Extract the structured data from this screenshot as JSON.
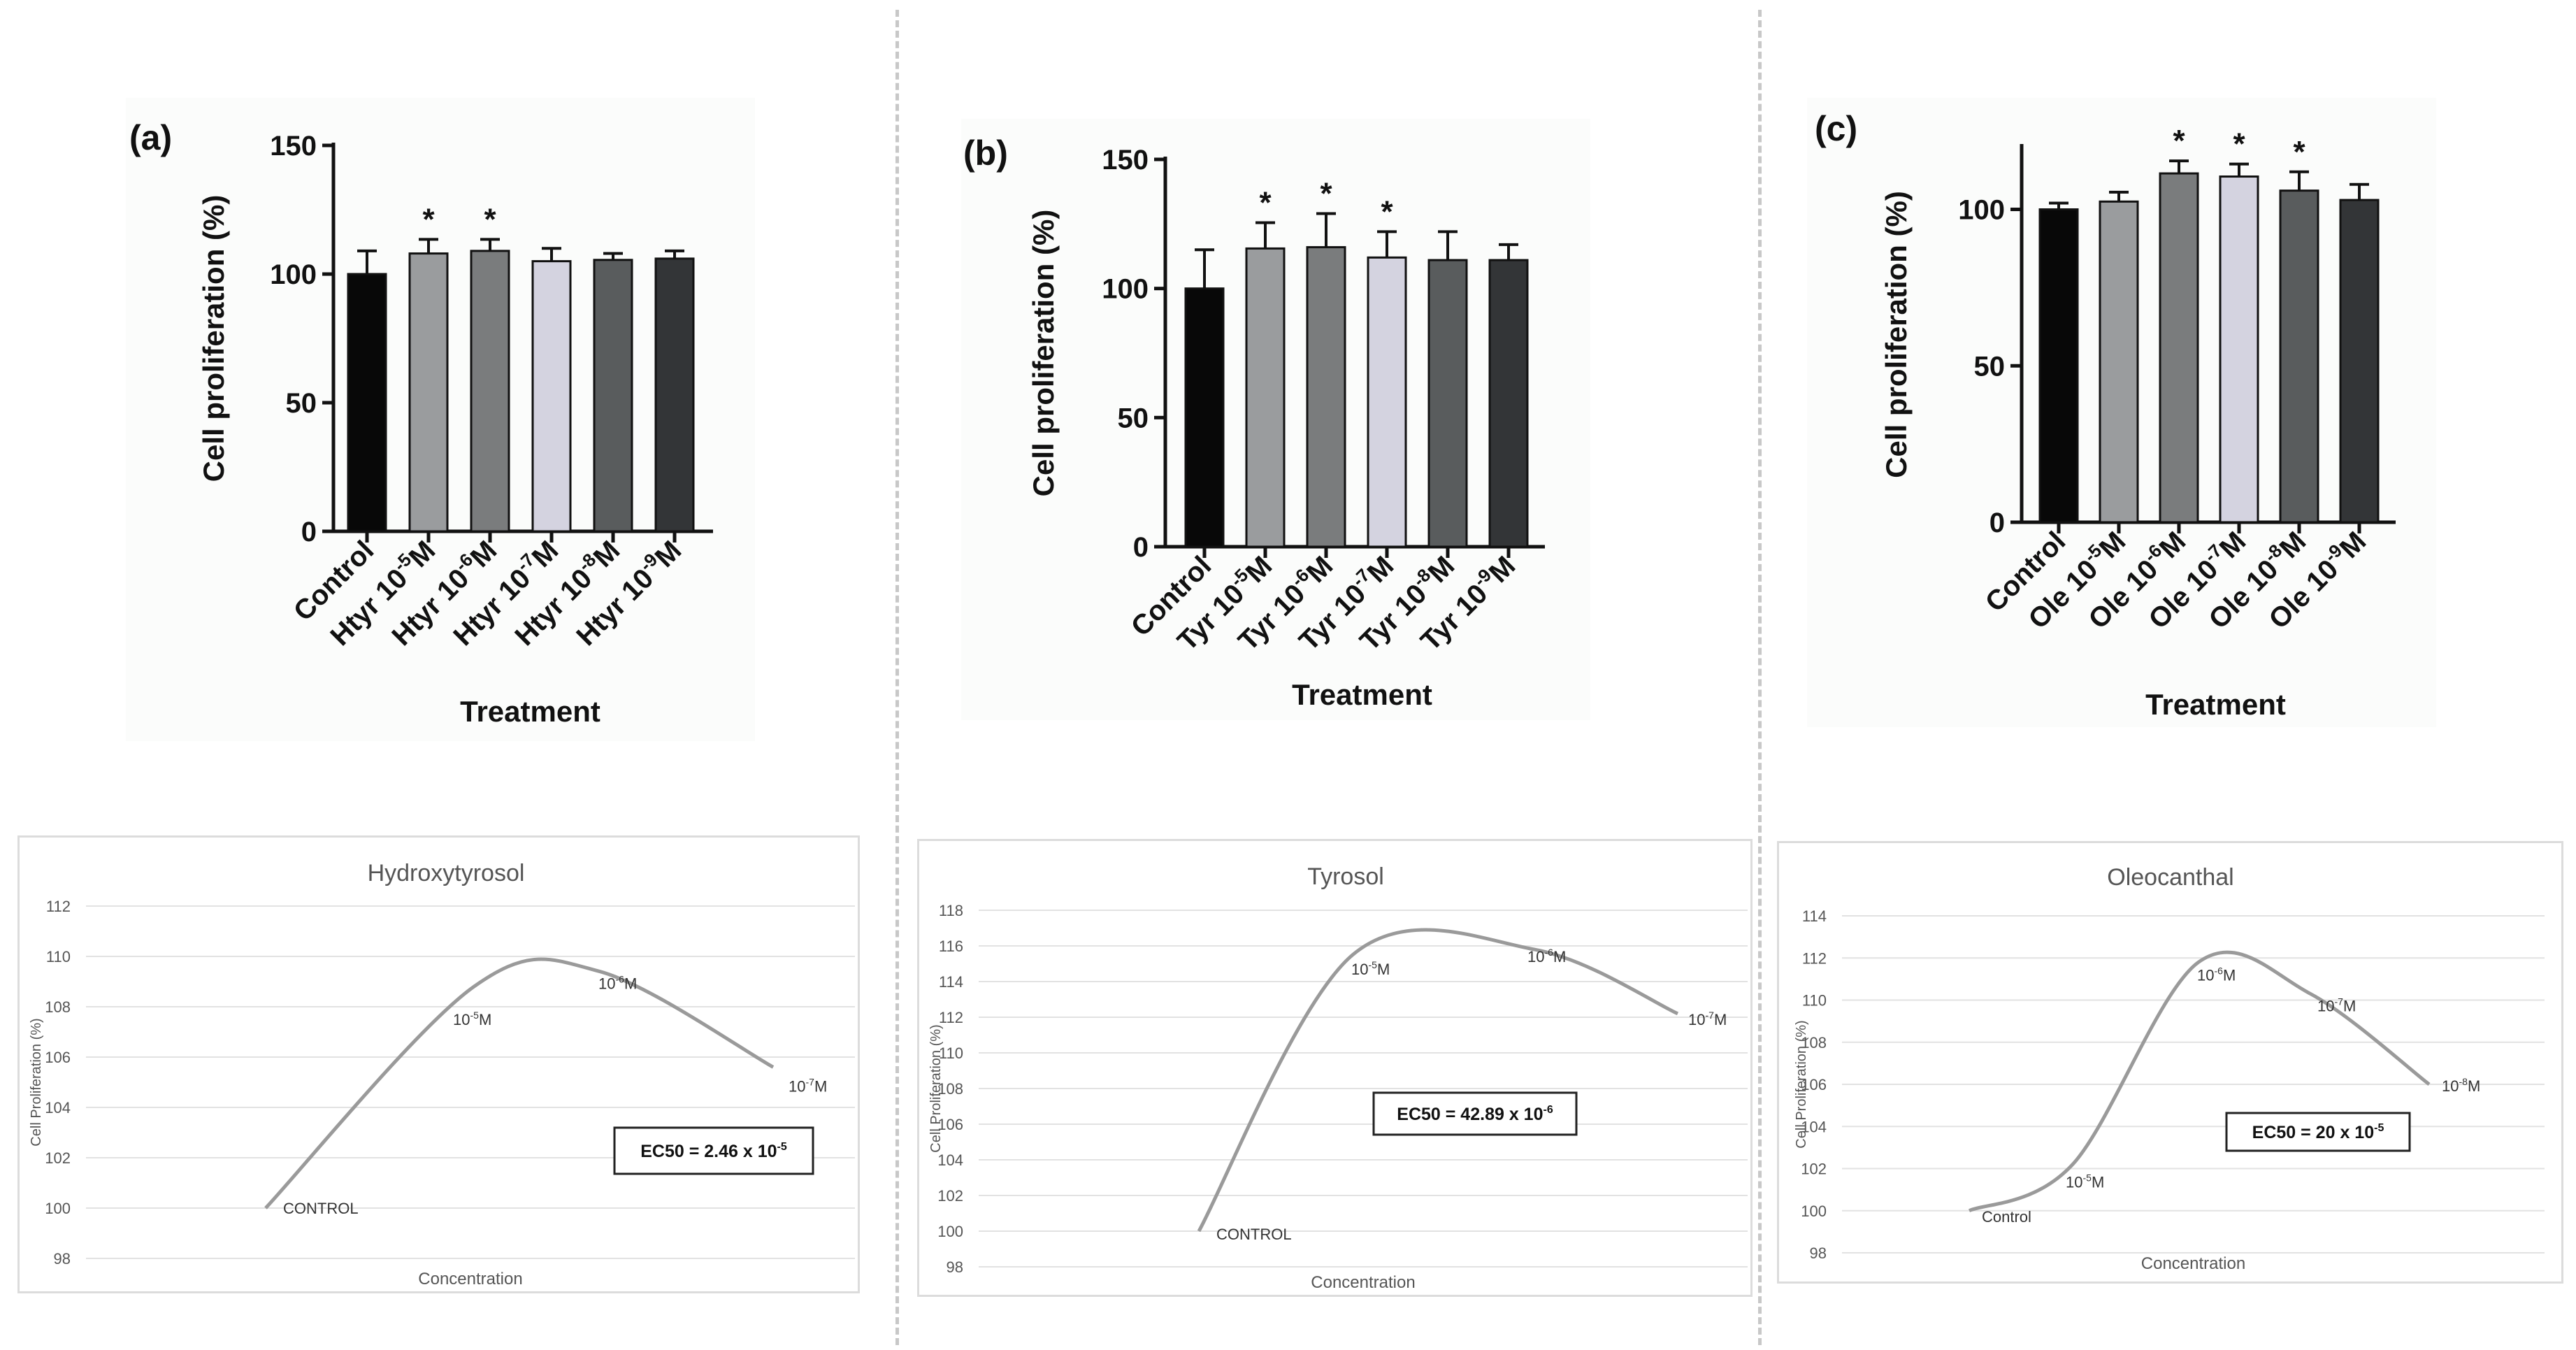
{
  "colors": {
    "bars": [
      "#080808",
      "#9a9c9e",
      "#7a7c7d",
      "#d4d3e0",
      "#595c5d",
      "#333537"
    ],
    "axis": "#111111",
    "curve": "#9a9a9a",
    "grid": "#e2e2e2"
  },
  "chart_data": [
    {
      "id": "a",
      "type": "bar",
      "panel_label": "(a)",
      "xlabel": "Treatment",
      "ylabel": "Cell proliferation (%)",
      "ylim": [
        0,
        150
      ],
      "yticks": [
        0,
        50,
        100,
        150
      ],
      "categories": [
        {
          "base": "Control",
          "sup": ""
        },
        {
          "base": "Htyr 10",
          "sup": "-5",
          "unit": "M"
        },
        {
          "base": "Htyr 10",
          "sup": "-6",
          "unit": "M"
        },
        {
          "base": "Htyr 10",
          "sup": "-7",
          "unit": "M"
        },
        {
          "base": "Htyr 10",
          "sup": "-8",
          "unit": "M"
        },
        {
          "base": "Htyr 10",
          "sup": "-9",
          "unit": "M"
        }
      ],
      "values": [
        100,
        108,
        109,
        105,
        105.5,
        106
      ],
      "errors": [
        9,
        5.5,
        4.5,
        5,
        2.5,
        3
      ],
      "significance": [
        "",
        "*",
        "*",
        "",
        "",
        ""
      ]
    },
    {
      "id": "b",
      "type": "bar",
      "panel_label": "(b)",
      "xlabel": "Treatment",
      "ylabel": "Cell proliferation (%)",
      "ylim": [
        0,
        150
      ],
      "yticks": [
        0,
        50,
        100,
        150
      ],
      "categories": [
        {
          "base": "Control",
          "sup": ""
        },
        {
          "base": "Tyr 10",
          "sup": "-5",
          "unit": "M"
        },
        {
          "base": "Tyr 10",
          "sup": "-6",
          "unit": "M"
        },
        {
          "base": "Tyr 10",
          "sup": "-7",
          "unit": "M"
        },
        {
          "base": "Tyr 10",
          "sup": "-8",
          "unit": "M"
        },
        {
          "base": "Tyr 10",
          "sup": "-9",
          "unit": "M"
        }
      ],
      "values": [
        100,
        115.5,
        116,
        112,
        111,
        111
      ],
      "errors": [
        15,
        10,
        13,
        10,
        11,
        6
      ],
      "significance": [
        "",
        "*",
        "*",
        "*",
        "",
        ""
      ]
    },
    {
      "id": "c",
      "type": "bar",
      "panel_label": "(c)",
      "xlabel": "Treatment",
      "ylabel": "Cell proliferation (%)",
      "ylim": [
        0,
        120
      ],
      "yticks": [
        0,
        50,
        100
      ],
      "categories": [
        {
          "base": "Control",
          "sup": ""
        },
        {
          "base": "Ole 10",
          "sup": "-5",
          "unit": "M"
        },
        {
          "base": "Ole 10",
          "sup": "-6",
          "unit": "M"
        },
        {
          "base": "Ole 10",
          "sup": "-7",
          "unit": "M"
        },
        {
          "base": "Ole 10",
          "sup": "-8",
          "unit": "M"
        },
        {
          "base": "Ole 10",
          "sup": "-9",
          "unit": "M"
        }
      ],
      "values": [
        100,
        102.5,
        111.5,
        110.5,
        106,
        103
      ],
      "errors": [
        2,
        3,
        4,
        4,
        6,
        5
      ],
      "significance": [
        "",
        "",
        "*",
        "*",
        "*",
        ""
      ]
    },
    {
      "id": "d",
      "type": "line",
      "title": "Hydroxytyrosol",
      "xlabel": "Concentration",
      "ylabel": "Cell Proliferation (%)",
      "ylim": [
        98,
        112
      ],
      "yticks": [
        98,
        100,
        102,
        104,
        106,
        108,
        110,
        112
      ],
      "x": [
        0,
        1,
        2,
        3
      ],
      "y": [
        100,
        108.8,
        109.4,
        105.6
      ],
      "point_labels": [
        {
          "base": "CONTROL",
          "sup": "",
          "unit": ""
        },
        {
          "base": "10",
          "sup": "-5",
          "unit": "M"
        },
        {
          "base": "10",
          "sup": "-6",
          "unit": "M"
        },
        {
          "base": "10",
          "sup": "-7",
          "unit": "M"
        }
      ],
      "annotation": {
        "base": "EC50 = 2.46 x 10",
        "sup": "-5"
      }
    },
    {
      "id": "e",
      "type": "line",
      "title": "Tyrosol",
      "xlabel": "Concentration",
      "ylabel": "Cell Proliferation (%)",
      "ylim": [
        98,
        118
      ],
      "yticks": [
        98,
        100,
        102,
        104,
        106,
        108,
        110,
        112,
        114,
        116,
        118
      ],
      "x": [
        0,
        1,
        2,
        3
      ],
      "y": [
        100,
        115.5,
        115.8,
        112.2
      ],
      "point_labels": [
        {
          "base": "CONTROL",
          "sup": "",
          "unit": ""
        },
        {
          "base": "10",
          "sup": "-5",
          "unit": "M"
        },
        {
          "base": "10",
          "sup": "-6",
          "unit": "M"
        },
        {
          "base": "10",
          "sup": "-7",
          "unit": "M"
        }
      ],
      "annotation": {
        "base": "EC50 = 42.89 x 10",
        "sup": "-6"
      }
    },
    {
      "id": "f",
      "type": "line",
      "title": "Oleocanthal",
      "xlabel": "Concentration",
      "ylabel": "Cell Proliferation (%)",
      "ylim": [
        98,
        114
      ],
      "yticks": [
        98,
        100,
        102,
        104,
        106,
        108,
        110,
        112,
        114
      ],
      "x": [
        0,
        1,
        2,
        3,
        4
      ],
      "y": [
        100,
        102.2,
        111.8,
        110.3,
        106
      ],
      "point_labels": [
        {
          "base": "Control",
          "sup": "",
          "unit": ""
        },
        {
          "base": "10",
          "sup": "-5",
          "unit": "M"
        },
        {
          "base": "10",
          "sup": "-6",
          "unit": "M"
        },
        {
          "base": "10",
          "sup": "-7",
          "unit": "M"
        },
        {
          "base": "10",
          "sup": "-8",
          "unit": "M"
        }
      ],
      "annotation": {
        "base": "EC50 = 20 x 10",
        "sup": "-5"
      }
    }
  ]
}
